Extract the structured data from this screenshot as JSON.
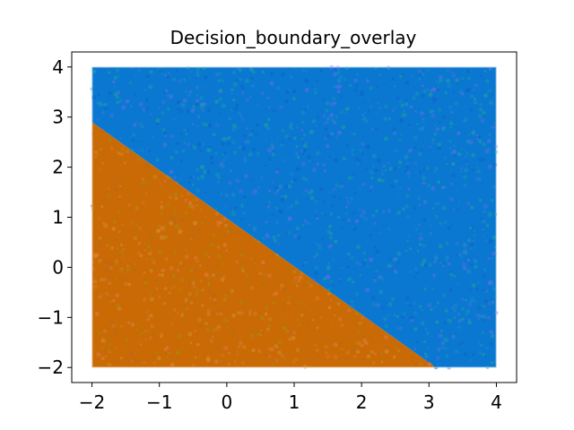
{
  "chart_data": {
    "type": "scatter",
    "title": "Decision_boundary_overlay",
    "xlabel": "",
    "ylabel": "",
    "xlim": [
      -2.3,
      4.3
    ],
    "ylim": [
      -2.3,
      4.3
    ],
    "xticks": [
      -2,
      -1,
      0,
      1,
      2,
      3,
      4
    ],
    "yticks": [
      -2,
      -1,
      0,
      1,
      2,
      3,
      4
    ],
    "xtick_labels": [
      "−2",
      "−1",
      "0",
      "1",
      "2",
      "3",
      "4"
    ],
    "ytick_labels": [
      "−2",
      "−1",
      "0",
      "1",
      "2",
      "3",
      "4"
    ],
    "sample_region": {
      "x": [
        -2,
        4
      ],
      "y": [
        -2,
        4
      ]
    },
    "decision_boundary": {
      "points": [
        [
          -2,
          2.9
        ],
        [
          3.1,
          -2
        ]
      ]
    },
    "series": [
      {
        "class": "above_boundary",
        "color": "#0a78d0",
        "speckle_colors": [
          "#1aa0a0",
          "#5b6ee8",
          "#1b8fc4",
          "#0d64c8"
        ]
      },
      {
        "class": "below_boundary",
        "color": "#c96a05",
        "speckle_colors": [
          "#a88a0a",
          "#e0783a",
          "#b86a1a",
          "#d28a28"
        ]
      }
    ],
    "grid": false,
    "legend": "none"
  }
}
